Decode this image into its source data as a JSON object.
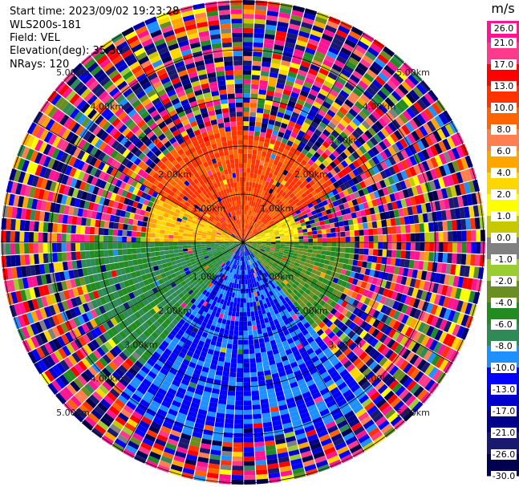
{
  "header": {
    "start_time": "Start time: 2023/09/02 19:23:28",
    "instrument": "WLS200s-181",
    "field": "Field: VEL",
    "elevation": "Elevation(deg): 35.30",
    "nrays": "NRays: 120"
  },
  "chart_data": {
    "type": "polar-ppi",
    "field": "VEL",
    "n_rays": 120,
    "range_rings_km": [
      "1.00km",
      "2.00km",
      "3.00km",
      "4.00km",
      "5.00km"
    ],
    "colorbar": {
      "unit": "m/s",
      "ticks": [
        "26.0",
        "21.0",
        "17.0",
        "13.0",
        "10.0",
        "8.0",
        "6.0",
        "4.0",
        "2.0",
        "1.0",
        "0.0",
        "-1.0",
        "-2.0",
        "-4.0",
        "-6.0",
        "-8.0",
        "-10.0",
        "-13.0",
        "-17.0",
        "-21.0",
        "-26.0",
        "-30.0"
      ],
      "colors": [
        "#ff1493",
        "#ff3a8c",
        "#ff0000",
        "#ff3200",
        "#ff6400",
        "#ff7f50",
        "#ffa500",
        "#ffd700",
        "#ffff00",
        "#c8c800",
        "#808080",
        "#9acd32",
        "#6b8e23",
        "#228b22",
        "#2e8b57",
        "#1e90ff",
        "#0000ff",
        "#0000cd",
        "#00008b",
        "#191970",
        "#000050"
      ]
    },
    "regions": [
      {
        "from_deg": 0,
        "to_deg": 60,
        "velocity_range": [
          8.0,
          13.0
        ],
        "max_range_km": 2.2
      },
      {
        "from_deg": 300,
        "to_deg": 360,
        "velocity_range": [
          8.0,
          13.0
        ],
        "max_range_km": 2.4
      },
      {
        "from_deg": 60,
        "to_deg": 90,
        "velocity_range": [
          0.0,
          4.0
        ],
        "max_range_km": 1.2
      },
      {
        "from_deg": 270,
        "to_deg": 300,
        "velocity_range": [
          2.0,
          6.0
        ],
        "max_range_km": 2.0
      },
      {
        "from_deg": 90,
        "to_deg": 140,
        "velocity_range": [
          -6.0,
          -2.0
        ],
        "max_range_km": 2.3
      },
      {
        "from_deg": 140,
        "to_deg": 220,
        "velocity_range": [
          -13.0,
          -8.0
        ],
        "max_range_km": 4.2
      },
      {
        "from_deg": 220,
        "to_deg": 270,
        "velocity_range": [
          -8.0,
          -4.0
        ],
        "max_range_km": 3.4
      }
    ]
  }
}
